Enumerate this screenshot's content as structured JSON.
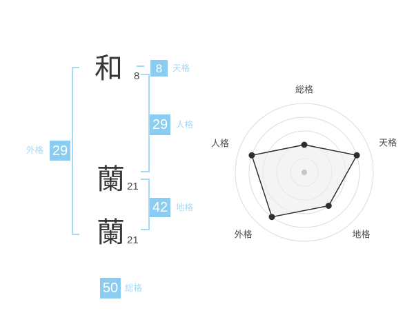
{
  "name_analysis": {
    "surname_chars": [
      {
        "char": "和",
        "strokes": "8"
      }
    ],
    "given_chars": [
      {
        "char": "蘭",
        "strokes": "21"
      },
      {
        "char": "蘭",
        "strokes": "21"
      }
    ],
    "tenkaku": {
      "label": "天格",
      "value": "8"
    },
    "jinkaku": {
      "label": "人格",
      "value": "29"
    },
    "chikaku": {
      "label": "地格",
      "value": "42"
    },
    "gaikaku": {
      "label": "外格",
      "value": "29"
    },
    "soukaku": {
      "label": "総格",
      "value": "50"
    }
  },
  "chart_data": {
    "type": "radar",
    "axes": [
      "総格",
      "天格",
      "地格",
      "外格",
      "人格"
    ],
    "values": [
      40,
      80,
      60,
      80,
      80
    ],
    "max": 100,
    "rings": [
      20,
      40,
      60,
      80,
      100
    ],
    "grid": "circular",
    "legend": false,
    "title": ""
  },
  "colors": {
    "accent_blue": "#8BCDF1",
    "label_blue": "#A5D9F5",
    "bracket_blue": "#A3DAF8",
    "kanji_ink": "#383838",
    "radar_stroke": "#2E2E2E",
    "radar_ring": "#DCDCDC",
    "radar_fill": "#EDEDED",
    "radar_center_dot": "#C6C6C6"
  }
}
